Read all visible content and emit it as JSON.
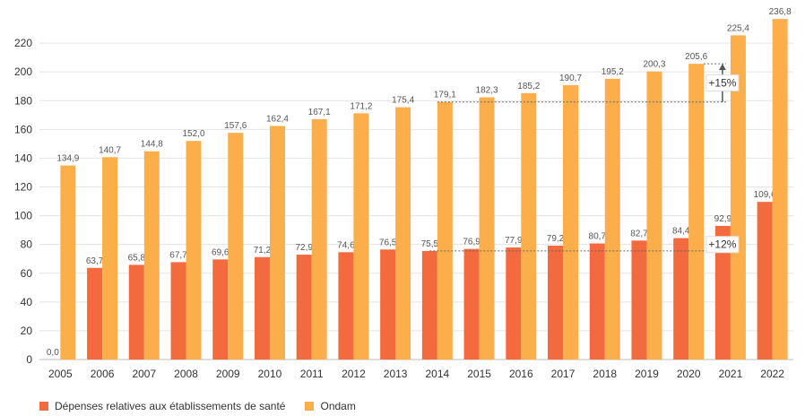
{
  "chart_data": {
    "type": "bar",
    "categories": [
      "2005",
      "2006",
      "2007",
      "2008",
      "2009",
      "2010",
      "2011",
      "2012",
      "2013",
      "2014",
      "2015",
      "2016",
      "2017",
      "2018",
      "2019",
      "2020",
      "2021",
      "2022"
    ],
    "series": [
      {
        "name": "Dépenses relatives aux établissements de santé",
        "color": "#f26a3d",
        "values": [
          0.0,
          63.7,
          65.8,
          67.7,
          69.6,
          71.2,
          72.9,
          74.6,
          76.5,
          75.5,
          76.9,
          77.9,
          79.2,
          80.7,
          82.7,
          84.4,
          92.9,
          109.6
        ],
        "labels": [
          "0,0",
          "63,7",
          "65,8",
          "67,7",
          "69,6",
          "71,2",
          "72,9",
          "74,6",
          "76,5",
          "75,5",
          "76,9",
          "77,9",
          "79,2",
          "80,7",
          "82,7",
          "84,4",
          "92,9",
          "109,6"
        ]
      },
      {
        "name": "Ondam",
        "color": "#fbae4a",
        "values": [
          134.9,
          140.7,
          144.8,
          152.0,
          157.6,
          162.4,
          167.1,
          171.2,
          175.4,
          179.1,
          182.3,
          185.2,
          190.7,
          195.2,
          200.3,
          205.6,
          225.4,
          236.8
        ],
        "labels": [
          "134,9",
          "140,7",
          "144,8",
          "152,0",
          "157,6",
          "162,4",
          "167,1",
          "171,2",
          "175,4",
          "179,1",
          "182,3",
          "185,2",
          "190,7",
          "195,2",
          "200,3",
          "205,6",
          "225,4",
          "236,8"
        ]
      }
    ],
    "yticks": [
      0,
      20,
      40,
      60,
      80,
      100,
      120,
      140,
      160,
      180,
      200,
      220
    ],
    "ylim": [
      0,
      240
    ],
    "grid": true,
    "legend_position": "bottom-left",
    "annotations": [
      {
        "text": "+15%",
        "from_value": 179.1,
        "to_value": 205.6,
        "from_category": "2014",
        "at_category": "2021"
      },
      {
        "text": "+12%",
        "from_value": 75.5,
        "to_value": 84.4,
        "from_category": "2014",
        "at_category": "2021"
      }
    ]
  },
  "legend": {
    "items": [
      {
        "label": "Dépenses relatives aux établissements de santé",
        "color": "#f26a3d"
      },
      {
        "label": "Ondam",
        "color": "#fbae4a"
      }
    ]
  }
}
